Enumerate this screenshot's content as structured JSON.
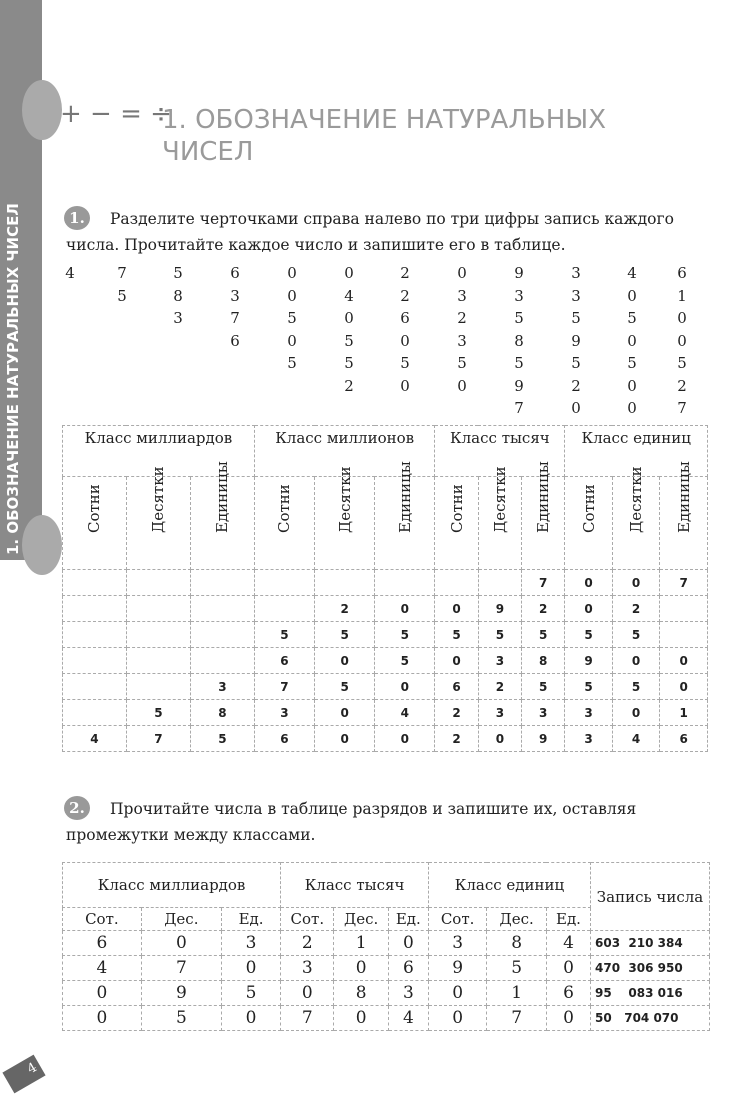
{
  "side_tab": "1. ОБОЗНАЧЕНИЕ НАТУРАЛЬНЫХ ЧИСЕЛ",
  "section_signs": "+ − = ÷",
  "title_line1": "1. ОБОЗНАЧЕНИЕ НАТУРАЛЬНЫХ",
  "title_line2": "ЧИСЕЛ",
  "task1": {
    "number": "1.",
    "text": "Разделите черточками справа налево по три цифры запись каждого числа. Прочитайте каждое число и запишите его в таблице.",
    "digit_columns": [
      [
        "4"
      ],
      [
        "7",
        "5"
      ],
      [
        "5",
        "8",
        "3"
      ],
      [
        "6",
        "3",
        "7",
        "6"
      ],
      [
        "0",
        "0",
        "5",
        "0",
        "5"
      ],
      [
        "0",
        "4",
        "0",
        "5",
        "5",
        "2"
      ],
      [
        "2",
        "2",
        "6",
        "0",
        "5",
        "0"
      ],
      [
        "0",
        "3",
        "2",
        "3",
        "5",
        "0"
      ],
      [
        "9",
        "3",
        "5",
        "8",
        "5",
        "9",
        "7"
      ],
      [
        "3",
        "3",
        "5",
        "9",
        "5",
        "2",
        "0"
      ],
      [
        "4",
        "0",
        "5",
        "0",
        "5",
        "0",
        "0"
      ],
      [
        "6",
        "1",
        "0",
        "0",
        "5",
        "2",
        "7"
      ]
    ],
    "table": {
      "classes": [
        "Класс миллиардов",
        "Класс миллионов",
        "Класс тысяч",
        "Класс единиц"
      ],
      "ranks": [
        "Сотни",
        "Десятки",
        "Единицы",
        "Сотни",
        "Десятки",
        "Единицы",
        "Сотни",
        "Десятки",
        "Единицы",
        "Сотни",
        "Десятки",
        "Единицы"
      ],
      "rows": [
        [
          "",
          "",
          "",
          "",
          "",
          "",
          "",
          "",
          "7",
          "0",
          "0",
          "7"
        ],
        [
          "",
          "",
          "",
          "",
          "2",
          "0",
          "0",
          "9",
          "2",
          "0",
          "2",
          ""
        ],
        [
          "",
          "",
          "",
          "5",
          "5",
          "5",
          "5",
          "5",
          "5",
          "5",
          "5",
          ""
        ],
        [
          "",
          "",
          "",
          "6",
          "0",
          "5",
          "0",
          "3",
          "8",
          "9",
          "0",
          "0"
        ],
        [
          "",
          "",
          "3",
          "7",
          "5",
          "0",
          "6",
          "2",
          "5",
          "5",
          "5",
          "0"
        ],
        [
          "",
          "5",
          "8",
          "3",
          "0",
          "4",
          "2",
          "3",
          "3",
          "3",
          "0",
          "1"
        ],
        [
          "4",
          "7",
          "5",
          "6",
          "0",
          "0",
          "2",
          "0",
          "9",
          "3",
          "4",
          "6"
        ]
      ]
    }
  },
  "task2": {
    "number": "2.",
    "text": "Прочитайте числа в таблице разрядов и запишите их, оставляя промежутки между классами.",
    "table": {
      "classes": [
        "Класс миллиардов",
        "Класс тысяч",
        "Класс единиц"
      ],
      "record_header": "Запись числа",
      "ranks": [
        "Сот.",
        "Дес.",
        "Ед.",
        "Сот.",
        "Дес.",
        "Ед.",
        "Сот.",
        "Дес.",
        "Ед."
      ],
      "rows": [
        {
          "digits": [
            "6",
            "0",
            "3",
            "2",
            "1",
            "0",
            "3",
            "8",
            "4"
          ],
          "record": "603  210 384"
        },
        {
          "digits": [
            "4",
            "7",
            "0",
            "3",
            "0",
            "6",
            "9",
            "5",
            "0"
          ],
          "record": "470  306 950"
        },
        {
          "digits": [
            "0",
            "9",
            "5",
            "0",
            "8",
            "3",
            "0",
            "1",
            "6"
          ],
          "record": "95    083 016"
        },
        {
          "digits": [
            "0",
            "5",
            "0",
            "7",
            "0",
            "4",
            "0",
            "7",
            "0"
          ],
          "record": "50   704 070"
        }
      ]
    }
  },
  "page_number": "4"
}
